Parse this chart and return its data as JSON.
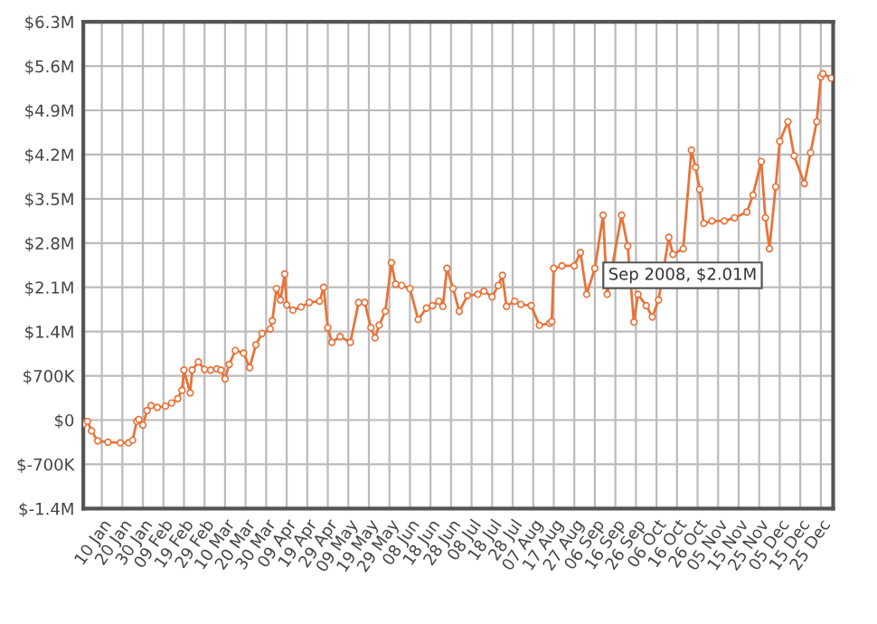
{
  "chart_data": {
    "type": "line",
    "x": [
      "2008-01-01",
      "2008-01-03",
      "2008-01-05",
      "2008-01-08",
      "2008-01-13",
      "2008-01-19",
      "2008-01-23",
      "2008-01-25",
      "2008-01-27",
      "2008-01-28",
      "2008-01-30",
      "2008-02-01",
      "2008-02-03",
      "2008-02-06",
      "2008-02-10",
      "2008-02-13",
      "2008-02-16",
      "2008-02-18",
      "2008-02-19",
      "2008-02-22",
      "2008-02-23",
      "2008-02-26",
      "2008-02-29",
      "2008-03-03",
      "2008-03-06",
      "2008-03-08",
      "2008-03-10",
      "2008-03-12",
      "2008-03-15",
      "2008-03-19",
      "2008-03-22",
      "2008-03-25",
      "2008-03-28",
      "2008-04-01",
      "2008-04-02",
      "2008-04-04",
      "2008-04-06",
      "2008-04-08",
      "2008-04-09",
      "2008-04-12",
      "2008-04-16",
      "2008-04-20",
      "2008-04-25",
      "2008-04-27",
      "2008-04-29",
      "2008-05-01",
      "2008-05-05",
      "2008-05-10",
      "2008-05-14",
      "2008-05-17",
      "2008-05-20",
      "2008-05-22",
      "2008-05-24",
      "2008-05-27",
      "2008-05-30",
      "2008-06-01",
      "2008-06-04",
      "2008-06-08",
      "2008-06-12",
      "2008-06-16",
      "2008-06-19",
      "2008-06-22",
      "2008-06-24",
      "2008-06-26",
      "2008-06-29",
      "2008-07-02",
      "2008-07-06",
      "2008-07-11",
      "2008-07-14",
      "2008-07-18",
      "2008-07-21",
      "2008-07-23",
      "2008-07-25",
      "2008-07-29",
      "2008-08-01",
      "2008-08-06",
      "2008-08-10",
      "2008-08-15",
      "2008-08-16",
      "2008-08-17",
      "2008-08-21",
      "2008-08-27",
      "2008-08-30",
      "2008-09-02",
      "2008-09-06",
      "2008-09-10",
      "2008-09-12",
      "2008-09-19",
      "2008-09-22",
      "2008-09-25",
      "2008-09-27",
      "2008-10-01",
      "2008-10-04",
      "2008-10-07",
      "2008-10-12",
      "2008-10-14",
      "2008-10-19",
      "2008-10-23",
      "2008-10-25",
      "2008-10-27",
      "2008-10-29",
      "2008-11-02",
      "2008-11-08",
      "2008-11-13",
      "2008-11-19",
      "2008-11-22",
      "2008-11-26",
      "2008-11-28",
      "2008-11-30",
      "2008-12-03",
      "2008-12-05",
      "2008-12-09",
      "2008-12-12",
      "2008-12-17",
      "2008-12-20",
      "2008-12-23",
      "2008-12-25",
      "2008-12-26",
      "2008-12-30"
    ],
    "series": [
      {
        "color": "#e8733a",
        "values": [
          -60000,
          -20000,
          -170000,
          -330000,
          -350000,
          -360000,
          -360000,
          -320000,
          -20000,
          10000,
          -80000,
          150000,
          230000,
          200000,
          220000,
          270000,
          340000,
          470000,
          790000,
          430000,
          790000,
          920000,
          800000,
          790000,
          810000,
          790000,
          650000,
          880000,
          1100000,
          1060000,
          830000,
          1190000,
          1370000,
          1440000,
          1570000,
          2080000,
          1900000,
          2310000,
          1820000,
          1740000,
          1790000,
          1860000,
          1880000,
          2100000,
          1460000,
          1230000,
          1320000,
          1230000,
          1860000,
          1860000,
          1460000,
          1300000,
          1500000,
          1720000,
          2490000,
          2150000,
          2130000,
          2080000,
          1590000,
          1770000,
          1810000,
          1880000,
          1800000,
          2400000,
          2080000,
          1720000,
          1970000,
          1990000,
          2040000,
          1950000,
          2130000,
          2290000,
          1800000,
          1880000,
          1830000,
          1810000,
          1500000,
          1530000,
          1560000,
          2400000,
          2440000,
          2440000,
          2650000,
          1990000,
          2400000,
          3240000,
          1990000,
          3240000,
          2750000,
          1550000,
          1990000,
          1810000,
          1630000,
          1900000,
          2890000,
          2620000,
          2710000,
          4270000,
          4000000,
          3650000,
          3110000,
          3150000,
          3150000,
          3200000,
          3290000,
          3560000,
          4090000,
          3200000,
          2710000,
          3690000,
          4410000,
          4720000,
          4180000,
          3740000,
          4230000,
          4720000,
          5430000,
          5480000,
          5410000
        ]
      }
    ],
    "xlim": [
      "2008-01-01",
      "2008-12-31"
    ],
    "xticks": [
      {
        "value": "2008-01-10",
        "label": "10 Jan"
      },
      {
        "value": "2008-01-20",
        "label": "20 Jan"
      },
      {
        "value": "2008-01-30",
        "label": "30 Jan"
      },
      {
        "value": "2008-02-09",
        "label": "09 Feb"
      },
      {
        "value": "2008-02-19",
        "label": "19 Feb"
      },
      {
        "value": "2008-02-29",
        "label": "29 Feb"
      },
      {
        "value": "2008-03-10",
        "label": "10 Mar"
      },
      {
        "value": "2008-03-20",
        "label": "20 Mar"
      },
      {
        "value": "2008-03-30",
        "label": "30 Mar"
      },
      {
        "value": "2008-04-09",
        "label": "09 Apr"
      },
      {
        "value": "2008-04-19",
        "label": "19 Apr"
      },
      {
        "value": "2008-04-29",
        "label": "29 Apr"
      },
      {
        "value": "2008-05-09",
        "label": "09 May"
      },
      {
        "value": "2008-05-19",
        "label": "19 May"
      },
      {
        "value": "2008-05-29",
        "label": "29 May"
      },
      {
        "value": "2008-06-08",
        "label": "08 Jun"
      },
      {
        "value": "2008-06-18",
        "label": "18 Jun"
      },
      {
        "value": "2008-06-28",
        "label": "28 Jun"
      },
      {
        "value": "2008-07-08",
        "label": "08 Jul"
      },
      {
        "value": "2008-07-18",
        "label": "18 Jul"
      },
      {
        "value": "2008-07-28",
        "label": "28 Jul"
      },
      {
        "value": "2008-08-07",
        "label": "07 Aug"
      },
      {
        "value": "2008-08-17",
        "label": "17 Aug"
      },
      {
        "value": "2008-08-27",
        "label": "27 Aug"
      },
      {
        "value": "2008-09-06",
        "label": "06 Sep"
      },
      {
        "value": "2008-09-16",
        "label": "16 Sep"
      },
      {
        "value": "2008-09-26",
        "label": "26 Sep"
      },
      {
        "value": "2008-10-06",
        "label": "06 Oct"
      },
      {
        "value": "2008-10-16",
        "label": "16 Oct"
      },
      {
        "value": "2008-10-26",
        "label": "26 Oct"
      },
      {
        "value": "2008-11-05",
        "label": "05 Nov"
      },
      {
        "value": "2008-11-15",
        "label": "15 Nov"
      },
      {
        "value": "2008-11-25",
        "label": "25 Nov"
      },
      {
        "value": "2008-12-05",
        "label": "05 Dec"
      },
      {
        "value": "2008-12-15",
        "label": "15 Dec"
      },
      {
        "value": "2008-12-25",
        "label": "25 Dec"
      }
    ],
    "ylim": [
      -1400000,
      6300000
    ],
    "yticks": [
      {
        "value": -1400000,
        "label": "$-1.4M"
      },
      {
        "value": -700000,
        "label": "$-700K"
      },
      {
        "value": 0,
        "label": "$0"
      },
      {
        "value": 700000,
        "label": "$700K"
      },
      {
        "value": 1400000,
        "label": "$1.4M"
      },
      {
        "value": 2100000,
        "label": "$2.1M"
      },
      {
        "value": 2800000,
        "label": "$2.8M"
      },
      {
        "value": 3500000,
        "label": "$3.5M"
      },
      {
        "value": 4200000,
        "label": "$4.2M"
      },
      {
        "value": 4900000,
        "label": "$4.9M"
      },
      {
        "value": 5600000,
        "label": "$5.6M"
      },
      {
        "value": 6300000,
        "label": "$6.3M"
      }
    ],
    "grid": true,
    "marker": "circle",
    "line_style": "solid",
    "annotations": [
      "Sep 2008, $2.01M"
    ]
  }
}
